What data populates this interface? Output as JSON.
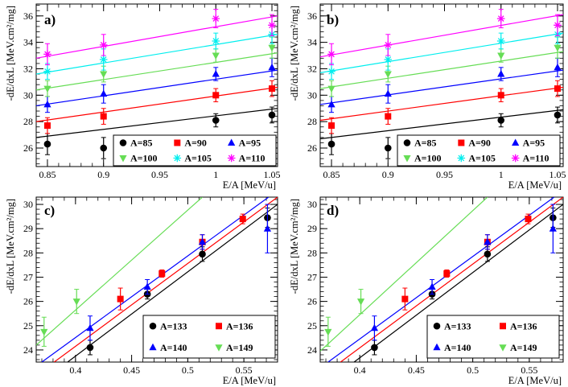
{
  "colors": {
    "black": "#000000",
    "red": "#ff0000",
    "blue": "#0000ff",
    "green": "#66dd55",
    "cyan": "#00eeee",
    "magenta": "#ff00ff"
  },
  "chart_data": [
    {
      "type": "scatter",
      "panel_label": "a)",
      "xlabel": "E/A [MeV/u]",
      "ylabel": "-dE/dxL [MeV.cm²/mg]",
      "xlim": [
        0.84,
        1.055
      ],
      "ylim": [
        24.6,
        36.9
      ],
      "xticks": [
        0.85,
        0.9,
        0.95,
        1,
        1.05
      ],
      "xtick_labels": [
        "0.85",
        "0.9",
        "0.95",
        "1",
        "1.05"
      ],
      "yticks": [
        26,
        28,
        30,
        32,
        34,
        36
      ],
      "ytick_labels": [
        "26",
        "28",
        "30",
        "32",
        "34",
        "36"
      ],
      "legend_columns": 3,
      "series": [
        {
          "name": "A=85",
          "marker": "circle",
          "color": "#000000",
          "x": [
            0.85,
            0.9,
            1.0,
            1.05
          ],
          "y": [
            26.3,
            26.0,
            28.1,
            28.5
          ],
          "err": [
            0.8,
            0.8,
            0.5,
            0.6
          ],
          "line": [
            [
              0.84,
              26.8
            ],
            [
              1.055,
              29.0
            ]
          ]
        },
        {
          "name": "A=90",
          "marker": "square",
          "color": "#ff0000",
          "x": [
            0.85,
            0.9,
            1.0,
            1.05
          ],
          "y": [
            27.7,
            28.4,
            30.0,
            30.5
          ],
          "err": [
            0.6,
            0.6,
            0.5,
            0.6
          ],
          "line": [
            [
              0.84,
              28.0
            ],
            [
              1.055,
              30.6
            ]
          ]
        },
        {
          "name": "A=95",
          "marker": "triangle-up",
          "color": "#0000ff",
          "x": [
            0.85,
            0.9,
            1.0,
            1.05
          ],
          "y": [
            29.3,
            30.1,
            31.6,
            32.1
          ],
          "err": [
            0.6,
            0.7,
            0.5,
            0.7
          ],
          "line": [
            [
              0.84,
              29.2
            ],
            [
              1.055,
              31.9
            ]
          ]
        },
        {
          "name": "A=100",
          "marker": "triangle-down",
          "color": "#66dd55",
          "x": [
            0.85,
            0.9,
            1.0,
            1.05
          ],
          "y": [
            30.5,
            31.6,
            33.0,
            33.6
          ],
          "err": [
            0.6,
            0.6,
            0.5,
            0.8
          ],
          "line": [
            [
              0.84,
              30.4
            ],
            [
              1.055,
              33.2
            ]
          ]
        },
        {
          "name": "A=105",
          "marker": "star",
          "color": "#00eeee",
          "x": [
            0.85,
            0.9,
            1.0,
            1.05
          ],
          "y": [
            31.8,
            32.7,
            34.1,
            34.6
          ],
          "err": [
            0.6,
            0.8,
            0.6,
            0.7
          ],
          "line": [
            [
              0.84,
              31.6
            ],
            [
              1.055,
              34.6
            ]
          ]
        },
        {
          "name": "A=110",
          "marker": "star",
          "color": "#ff00ff",
          "x": [
            0.85,
            0.9,
            1.0,
            1.05
          ],
          "y": [
            33.1,
            33.8,
            35.8,
            35.3
          ],
          "err": [
            0.8,
            0.8,
            0.7,
            0.8
          ],
          "line": [
            [
              0.84,
              32.8
            ],
            [
              1.055,
              36.0
            ]
          ]
        }
      ]
    },
    {
      "type": "scatter",
      "panel_label": "b)",
      "xlabel": "E/A [MeV/u]",
      "ylabel": "-dE/dxL [MeV.cm²/mg]",
      "xlim": [
        0.84,
        1.055
      ],
      "ylim": [
        24.6,
        36.9
      ],
      "xticks": [
        0.85,
        0.9,
        0.95,
        1,
        1.05
      ],
      "xtick_labels": [
        "0.85",
        "0.9",
        "0.95",
        "1",
        "1.05"
      ],
      "yticks": [
        26,
        28,
        30,
        32,
        34,
        36
      ],
      "ytick_labels": [
        "26",
        "28",
        "30",
        "32",
        "34",
        "36"
      ],
      "legend_columns": 3,
      "series": [
        {
          "name": "A=85",
          "marker": "circle",
          "color": "#000000",
          "x": [
            0.85,
            0.9,
            1.0,
            1.05
          ],
          "y": [
            26.3,
            26.0,
            28.1,
            28.5
          ],
          "err": [
            0.8,
            0.8,
            0.5,
            0.6
          ],
          "line": [
            [
              0.84,
              26.7
            ],
            [
              1.055,
              28.9
            ]
          ]
        },
        {
          "name": "A=90",
          "marker": "square",
          "color": "#ff0000",
          "x": [
            0.85,
            0.9,
            1.0,
            1.05
          ],
          "y": [
            27.7,
            28.4,
            30.0,
            30.5
          ],
          "err": [
            0.6,
            0.6,
            0.5,
            0.6
          ],
          "line": [
            [
              0.84,
              28.1
            ],
            [
              1.055,
              30.6
            ]
          ]
        },
        {
          "name": "A=95",
          "marker": "triangle-up",
          "color": "#0000ff",
          "x": [
            0.85,
            0.9,
            1.0,
            1.05
          ],
          "y": [
            29.3,
            30.1,
            31.6,
            32.1
          ],
          "err": [
            0.6,
            0.7,
            0.5,
            0.7
          ],
          "line": [
            [
              0.84,
              29.3
            ],
            [
              1.055,
              31.9
            ]
          ]
        },
        {
          "name": "A=100",
          "marker": "triangle-down",
          "color": "#66dd55",
          "x": [
            0.85,
            0.9,
            1.0,
            1.05
          ],
          "y": [
            30.5,
            31.6,
            33.0,
            33.6
          ],
          "err": [
            0.6,
            0.6,
            0.5,
            0.8
          ],
          "line": [
            [
              0.84,
              30.5
            ],
            [
              1.055,
              33.3
            ]
          ]
        },
        {
          "name": "A=105",
          "marker": "star",
          "color": "#00eeee",
          "x": [
            0.85,
            0.9,
            1.0,
            1.05
          ],
          "y": [
            31.8,
            32.7,
            34.1,
            34.6
          ],
          "err": [
            0.6,
            0.8,
            0.6,
            0.7
          ],
          "line": [
            [
              0.84,
              31.7
            ],
            [
              1.055,
              34.7
            ]
          ]
        },
        {
          "name": "A=110",
          "marker": "star",
          "color": "#ff00ff",
          "x": [
            0.85,
            0.9,
            1.0,
            1.05
          ],
          "y": [
            33.1,
            33.8,
            35.8,
            35.3
          ],
          "err": [
            0.8,
            0.8,
            0.7,
            0.8
          ],
          "line": [
            [
              0.84,
              32.9
            ],
            [
              1.055,
              36.1
            ]
          ]
        }
      ]
    },
    {
      "type": "scatter",
      "panel_label": "c)",
      "xlabel": "E/A [MeV/u]",
      "ylabel": "-dE/dxL [MeV.cm²/mg]",
      "xlim": [
        0.365,
        0.58
      ],
      "ylim": [
        23.5,
        30.3
      ],
      "xticks": [
        0.4,
        0.45,
        0.5,
        0.55
      ],
      "xtick_labels": [
        "0.4",
        "0.45",
        "0.5",
        "0.55"
      ],
      "yticks": [
        24,
        25,
        26,
        27,
        28,
        29,
        30
      ],
      "ytick_labels": [
        "24",
        "25",
        "26",
        "27",
        "28",
        "29",
        "30"
      ],
      "legend_columns": 2,
      "series": [
        {
          "name": "A=133",
          "marker": "circle",
          "color": "#000000",
          "x": [
            0.413,
            0.464,
            0.513,
            0.571
          ],
          "y": [
            24.1,
            26.3,
            27.95,
            29.45
          ],
          "err": [
            0.3,
            0.2,
            0.3,
            0.4
          ],
          "line": [
            [
              0.393,
              23.5
            ],
            [
              0.58,
              30.0
            ]
          ]
        },
        {
          "name": "A=136",
          "marker": "square",
          "color": "#ff0000",
          "x": [
            0.44,
            0.477,
            0.513,
            0.549
          ],
          "y": [
            26.1,
            27.15,
            28.45,
            29.4
          ],
          "err": [
            0.45,
            0.15,
            0.3,
            0.2
          ],
          "line": [
            [
              0.381,
              23.5
            ],
            [
              0.58,
              30.3
            ]
          ]
        },
        {
          "name": "A=140",
          "marker": "triangle-up",
          "color": "#0000ff",
          "x": [
            0.413,
            0.464,
            0.513,
            0.571
          ],
          "y": [
            24.9,
            26.6,
            28.45,
            29.0
          ],
          "err": [
            0.5,
            0.3,
            0.3,
            1.0
          ],
          "line": [
            [
              0.37,
              23.5
            ],
            [
              0.572,
              30.3
            ]
          ]
        },
        {
          "name": "A=149",
          "marker": "triangle-down",
          "color": "#66dd55",
          "x": [
            0.372,
            0.401
          ],
          "y": [
            24.75,
            26.0
          ],
          "err": [
            0.6,
            0.5
          ],
          "line": [
            [
              0.365,
              24.2
            ],
            [
              0.513,
              30.3
            ]
          ]
        }
      ]
    },
    {
      "type": "scatter",
      "panel_label": "d)",
      "xlabel": "E/A [MeV/u]",
      "ylabel": "-dE/dxL [MeV.cm²/mg]",
      "xlim": [
        0.365,
        0.58
      ],
      "ylim": [
        23.5,
        30.3
      ],
      "xticks": [
        0.4,
        0.45,
        0.5,
        0.55
      ],
      "xtick_labels": [
        "0.4",
        "0.45",
        "0.5",
        "0.55"
      ],
      "yticks": [
        24,
        25,
        26,
        27,
        28,
        29,
        30
      ],
      "ytick_labels": [
        "24",
        "25",
        "26",
        "27",
        "28",
        "29",
        "30"
      ],
      "legend_columns": 2,
      "series": [
        {
          "name": "A=133",
          "marker": "circle",
          "color": "#000000",
          "x": [
            0.413,
            0.464,
            0.513,
            0.571
          ],
          "y": [
            24.1,
            26.3,
            27.95,
            29.45
          ],
          "err": [
            0.3,
            0.2,
            0.3,
            0.4
          ],
          "line": [
            [
              0.395,
              23.5
            ],
            [
              0.58,
              30.0
            ]
          ]
        },
        {
          "name": "A=136",
          "marker": "square",
          "color": "#ff0000",
          "x": [
            0.44,
            0.477,
            0.513,
            0.549
          ],
          "y": [
            26.1,
            27.15,
            28.45,
            29.4
          ],
          "err": [
            0.45,
            0.15,
            0.3,
            0.2
          ],
          "line": [
            [
              0.383,
              23.5
            ],
            [
              0.58,
              30.3
            ]
          ]
        },
        {
          "name": "A=140",
          "marker": "triangle-up",
          "color": "#0000ff",
          "x": [
            0.413,
            0.464,
            0.513,
            0.571
          ],
          "y": [
            24.9,
            26.6,
            28.45,
            29.0
          ],
          "err": [
            0.5,
            0.3,
            0.3,
            1.0
          ],
          "line": [
            [
              0.372,
              23.5
            ],
            [
              0.572,
              30.3
            ]
          ]
        },
        {
          "name": "A=149",
          "marker": "triangle-down",
          "color": "#66dd55",
          "x": [
            0.372,
            0.401
          ],
          "y": [
            24.75,
            26.0
          ],
          "err": [
            0.6,
            0.5
          ],
          "line": [
            [
              0.365,
              23.95
            ],
            [
              0.513,
              30.3
            ]
          ]
        }
      ]
    }
  ]
}
